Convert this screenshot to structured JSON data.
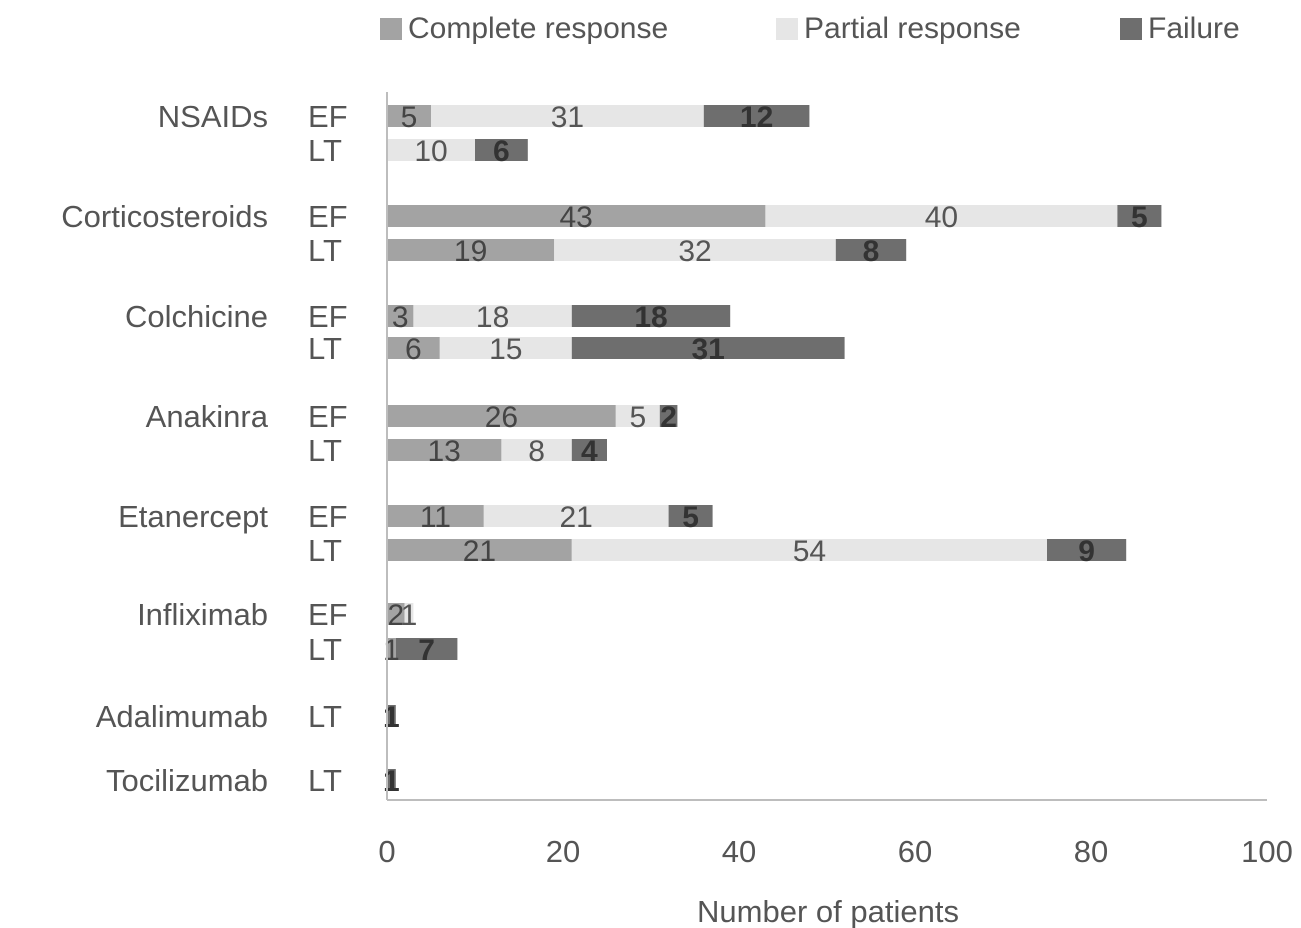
{
  "chart_data": {
    "type": "bar",
    "orientation": "horizontal",
    "stacked": true,
    "xlabel": "Number of patients",
    "xlim": [
      0,
      100
    ],
    "xticks": [
      0,
      20,
      40,
      60,
      80,
      100
    ],
    "grid": false,
    "legend_position": "top",
    "series": [
      {
        "name": "Complete response",
        "color": "#a3a3a3"
      },
      {
        "name": "Partial response",
        "color": "#e6e6e6"
      },
      {
        "name": "Failure",
        "color": "#6e6e6e"
      }
    ],
    "groups": [
      {
        "label": "NSAIDs",
        "rows": [
          {
            "label": "EF",
            "values": [
              5,
              31,
              12
            ]
          },
          {
            "label": "LT",
            "values": [
              0,
              10,
              6
            ]
          }
        ]
      },
      {
        "label": "Corticosteroids",
        "rows": [
          {
            "label": "EF",
            "values": [
              43,
              40,
              5
            ]
          },
          {
            "label": "LT",
            "values": [
              19,
              32,
              8
            ]
          }
        ]
      },
      {
        "label": "Colchicine",
        "rows": [
          {
            "label": "EF",
            "values": [
              3,
              18,
              18
            ]
          },
          {
            "label": "LT",
            "values": [
              6,
              15,
              31
            ]
          }
        ]
      },
      {
        "label": "Anakinra",
        "rows": [
          {
            "label": "EF",
            "values": [
              26,
              5,
              2
            ]
          },
          {
            "label": "LT",
            "values": [
              13,
              8,
              4
            ]
          }
        ]
      },
      {
        "label": "Etanercept",
        "rows": [
          {
            "label": "EF",
            "values": [
              11,
              21,
              5
            ]
          },
          {
            "label": "LT",
            "values": [
              21,
              54,
              9
            ]
          }
        ]
      },
      {
        "label": "Infliximab",
        "rows": [
          {
            "label": "EF",
            "values": [
              2,
              1,
              0
            ]
          },
          {
            "label": "LT",
            "values": [
              1,
              0,
              7
            ]
          }
        ]
      },
      {
        "label": "Adalimumab",
        "rows": [
          {
            "label": "LT",
            "values": [
              0,
              0,
              1
            ]
          }
        ]
      },
      {
        "label": "Tocilizumab",
        "rows": [
          {
            "label": "LT",
            "values": [
              0,
              0,
              1
            ]
          }
        ]
      }
    ]
  }
}
